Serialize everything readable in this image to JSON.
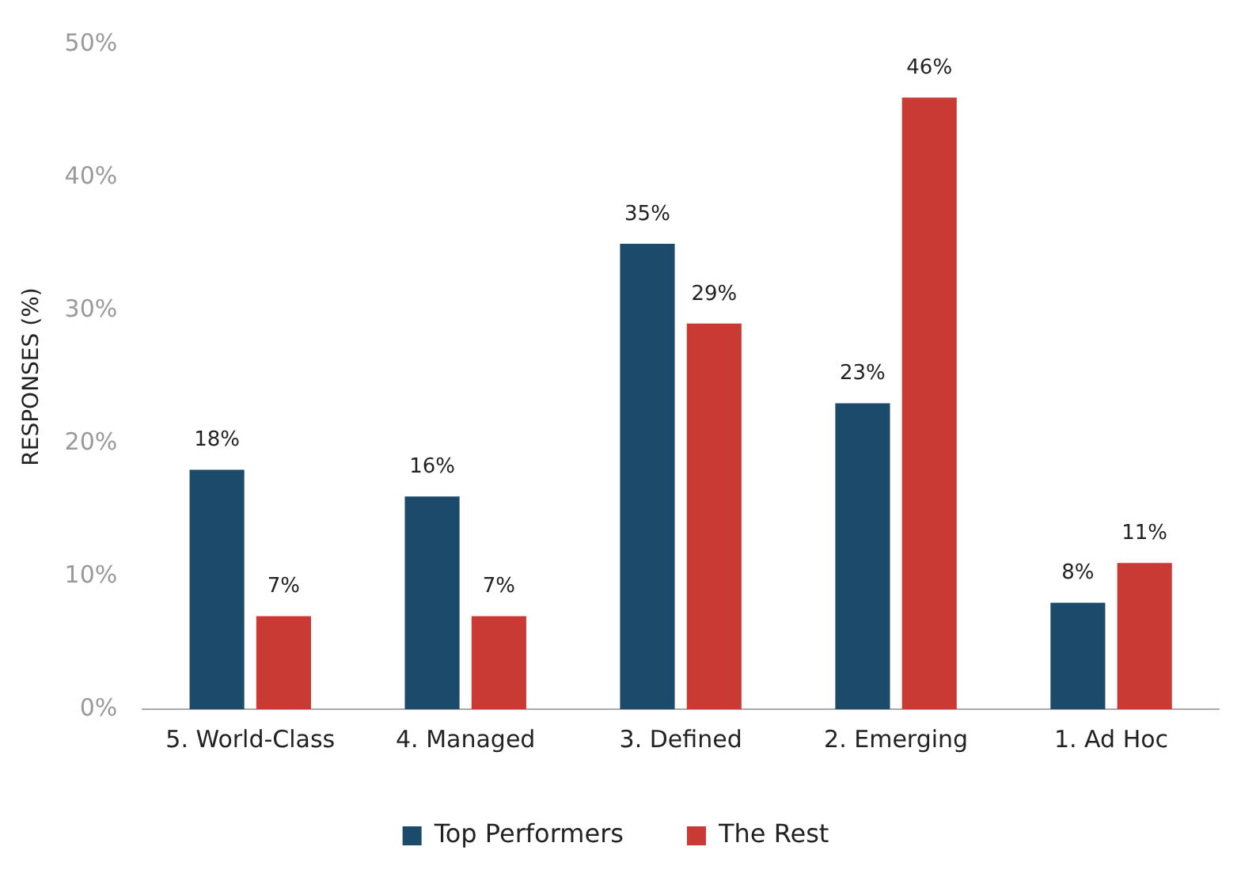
{
  "chart_data": {
    "type": "bar",
    "ylabel": "RESPONSES (%)",
    "categories": [
      "5. World-Class",
      "4. Managed",
      "3. Defined",
      "2. Emerging",
      "1. Ad Hoc"
    ],
    "series": [
      {
        "name": "Top Performers",
        "color": "#1b4a6b",
        "values": [
          18,
          16,
          35,
          23,
          8
        ],
        "value_labels": [
          "18%",
          "16%",
          "35%",
          "23%",
          "8%"
        ]
      },
      {
        "name": "The Rest",
        "color": "#c93a35",
        "values": [
          7,
          7,
          29,
          46,
          11
        ],
        "value_labels": [
          "7%",
          "7%",
          "29%",
          "46%",
          "11%"
        ]
      }
    ],
    "ylim": [
      0,
      50
    ],
    "yticks": [
      {
        "value": 0,
        "label": "0%"
      },
      {
        "value": 10,
        "label": "10%"
      },
      {
        "value": 20,
        "label": "20%"
      },
      {
        "value": 30,
        "label": "30%"
      },
      {
        "value": 40,
        "label": "40%"
      },
      {
        "value": 50,
        "label": "50%"
      }
    ],
    "legend": "bottom"
  }
}
